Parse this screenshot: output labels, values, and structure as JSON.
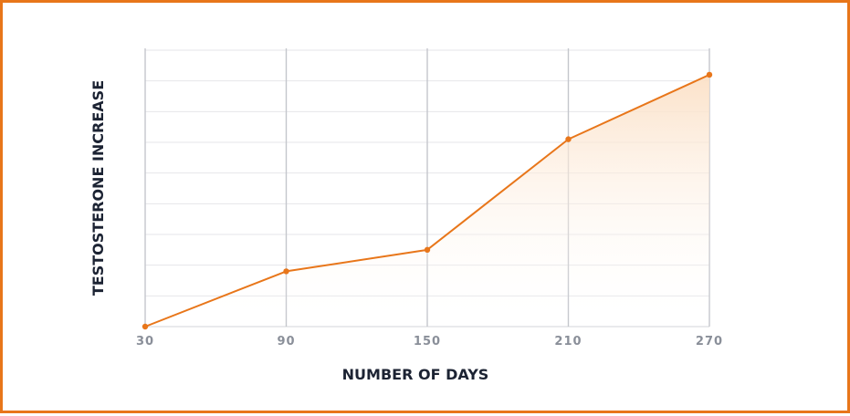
{
  "chart_data": {
    "type": "area",
    "title": "",
    "xlabel": "NUMBER OF DAYS",
    "ylabel": "TESTOSTERONE INCREASE",
    "x": [
      30,
      90,
      150,
      210,
      270
    ],
    "series": [
      {
        "values": [
          0,
          1.8,
          2.5,
          6.1,
          8.2
        ]
      }
    ],
    "xlim": [
      30,
      270
    ],
    "ylim": [
      0,
      9
    ],
    "y_gridlines": 9,
    "y_tick_labels_shown": false,
    "grid": true,
    "legend": "none",
    "colors": {
      "line": "#e8761a",
      "fill": "#fbe3cc",
      "border": "#e8761a",
      "grid": "#e6e6ea",
      "vgrid": "#c4c6cc"
    }
  }
}
